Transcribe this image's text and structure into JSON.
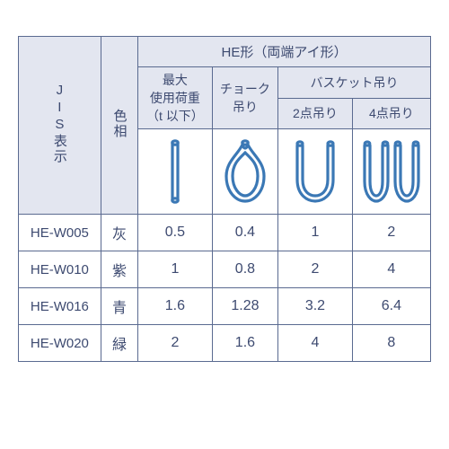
{
  "colors": {
    "line": "#5a6a90",
    "text": "#3d4a70",
    "shade": "#e3e6f0",
    "icon": "#3b78b5",
    "bg": "#ffffff"
  },
  "header": {
    "jis": "JIS表示",
    "color_col": "色相",
    "shape_title": "HE形（両端アイ形）",
    "max_load": "最大\n使用荷重\n（t 以下）",
    "choke": "チョーク\n吊り",
    "basket": "バスケット吊り",
    "pt2": "2点吊り",
    "pt4": "4点吊り"
  },
  "rows": [
    {
      "code": "HE-W005",
      "color": "灰",
      "max": "0.5",
      "choke": "0.4",
      "b2": "1",
      "b4": "2"
    },
    {
      "code": "HE-W010",
      "color": "紫",
      "max": "1",
      "choke": "0.8",
      "b2": "2",
      "b4": "4"
    },
    {
      "code": "HE-W016",
      "color": "青",
      "max": "1.6",
      "choke": "1.28",
      "b2": "3.2",
      "b4": "6.4"
    },
    {
      "code": "HE-W020",
      "color": "緑",
      "max": "2",
      "choke": "1.6",
      "b2": "4",
      "b4": "8"
    }
  ],
  "table": {
    "col_widths_pct": [
      20,
      9,
      18,
      16,
      18,
      19
    ],
    "icon_stroke_width": 3.2
  }
}
